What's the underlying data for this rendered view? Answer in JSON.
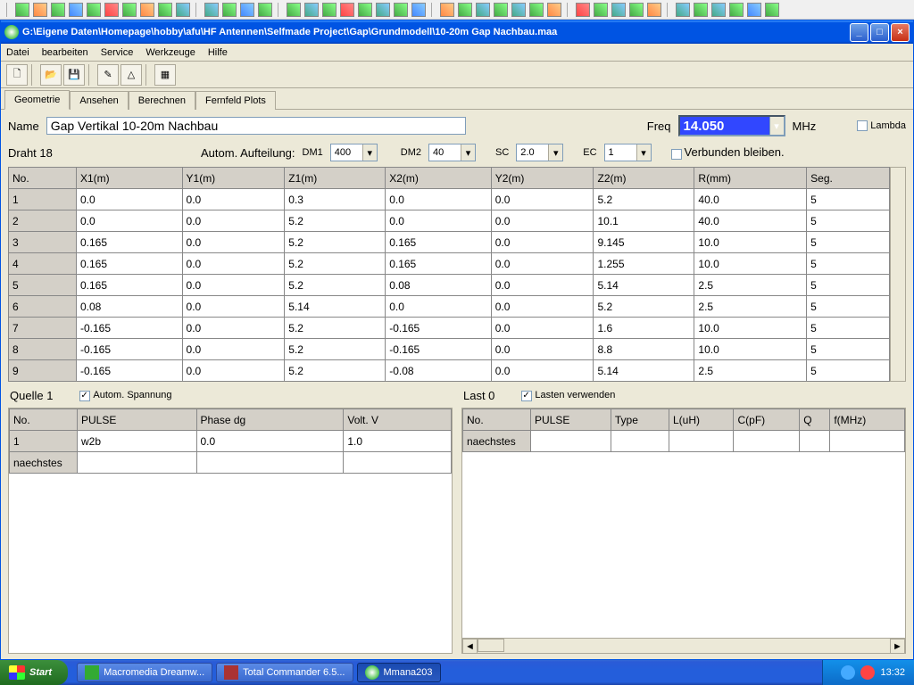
{
  "window": {
    "title": "G:\\Eigene Daten\\Homepage\\hobby\\afu\\HF Antennen\\Selfmade Project\\Gap\\Grundmodell\\10-20m Gap Nachbau.maa"
  },
  "menu": {
    "items": [
      "Datei",
      "bearbeiten",
      "Service",
      "Werkzeuge",
      "Hilfe"
    ]
  },
  "tabs": [
    "Geometrie",
    "Ansehen",
    "Berechnen",
    "Fernfeld Plots"
  ],
  "fields": {
    "name_label": "Name",
    "name_value": "Gap Vertikal 10-20m Nachbau",
    "freq_label": "Freq",
    "freq_value": "14.050",
    "freq_unit": "MHz",
    "lambda_label": "Lambda",
    "draht_label": "Draht 18",
    "auto_label": "Autom. Aufteilung:",
    "dm1_label": "DM1",
    "dm1_value": "400",
    "dm2_label": "DM2",
    "dm2_value": "40",
    "sc_label": "SC",
    "sc_value": "2.0",
    "ec_label": "EC",
    "ec_value": "1",
    "verbunden_label": "Verbunden bleiben."
  },
  "main_table": {
    "headers": [
      "No.",
      "X1(m)",
      "Y1(m)",
      "Z1(m)",
      "X2(m)",
      "Y2(m)",
      "Z2(m)",
      "R(mm)",
      "Seg."
    ],
    "rows": [
      [
        "1",
        "0.0",
        "0.0",
        "0.3",
        "0.0",
        "0.0",
        "5.2",
        "40.0",
        "5"
      ],
      [
        "2",
        "0.0",
        "0.0",
        "5.2",
        "0.0",
        "0.0",
        "10.1",
        "40.0",
        "5"
      ],
      [
        "3",
        "0.165",
        "0.0",
        "5.2",
        "0.165",
        "0.0",
        "9.145",
        "10.0",
        "5"
      ],
      [
        "4",
        "0.165",
        "0.0",
        "5.2",
        "0.165",
        "0.0",
        "1.255",
        "10.0",
        "5"
      ],
      [
        "5",
        "0.165",
        "0.0",
        "5.2",
        "0.08",
        "0.0",
        "5.14",
        "2.5",
        "5"
      ],
      [
        "6",
        "0.08",
        "0.0",
        "5.14",
        "0.0",
        "0.0",
        "5.2",
        "2.5",
        "5"
      ],
      [
        "7",
        "-0.165",
        "0.0",
        "5.2",
        "-0.165",
        "0.0",
        "1.6",
        "10.0",
        "5"
      ],
      [
        "8",
        "-0.165",
        "0.0",
        "5.2",
        "-0.165",
        "0.0",
        "8.8",
        "10.0",
        "5"
      ],
      [
        "9",
        "-0.165",
        "0.0",
        "5.2",
        "-0.08",
        "0.0",
        "5.14",
        "2.5",
        "5"
      ]
    ]
  },
  "quelle": {
    "title": "Quelle 1",
    "chk_label": "Autom. Spannung",
    "headers": [
      "No.",
      "PULSE",
      "Phase dg",
      "Volt. V"
    ],
    "rows": [
      [
        "1",
        "w2b",
        "0.0",
        "1.0"
      ],
      [
        "naechstes",
        "",
        "",
        ""
      ]
    ]
  },
  "last": {
    "title": "Last 0",
    "chk_label": "Lasten verwenden",
    "headers": [
      "No.",
      "PULSE",
      "Type",
      "L(uH)",
      "C(pF)",
      "Q",
      "f(MHz)"
    ],
    "rows": [
      [
        "naechstes",
        "",
        "",
        "",
        "",
        "",
        ""
      ]
    ]
  },
  "taskbar": {
    "start": "Start",
    "tasks": [
      "Macromedia Dreamw...",
      "Total Commander 6.5...",
      "Mmana203"
    ],
    "clock": "13:32"
  },
  "dd_glyph": "▾",
  "arr_l": "◄",
  "arr_r": "►"
}
